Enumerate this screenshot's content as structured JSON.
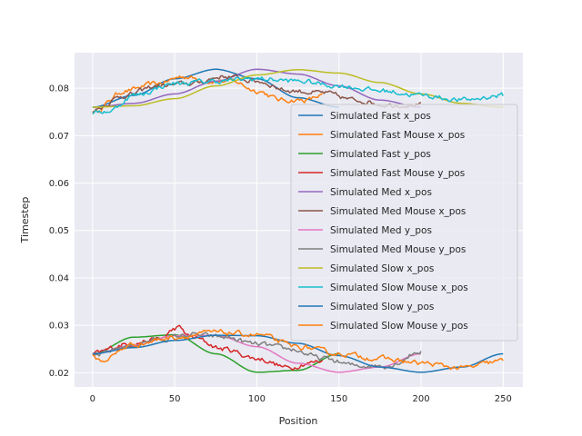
{
  "chart_data": {
    "type": "line",
    "title": "",
    "xlabel": "Position",
    "ylabel": "Timestep",
    "xlim": [
      -11,
      262
    ],
    "ylim": [
      0.017,
      0.0875
    ],
    "xticks": [
      0,
      50,
      100,
      150,
      200,
      250
    ],
    "yticks": [
      0.02,
      0.03,
      0.04,
      0.05,
      0.06,
      0.07,
      0.08
    ],
    "ytick_labels": [
      "0.02",
      "0.03",
      "0.04",
      "0.05",
      "0.06",
      "0.07",
      "0.08"
    ],
    "grid": true,
    "legend_position": "right",
    "series": [
      {
        "name": "Simulated Fast x_pos",
        "color": "#1f77b4",
        "kind": "smooth",
        "x_end": 150,
        "x": [
          0,
          25,
          50,
          75,
          100,
          125,
          150
        ],
        "y": [
          0.076,
          0.0785,
          0.082,
          0.084,
          0.082,
          0.078,
          0.076
        ]
      },
      {
        "name": "Simulated Fast Mouse x_pos",
        "color": "#ff7f0e",
        "kind": "noisy",
        "x_end": 140,
        "x": [
          0,
          20,
          40,
          55,
          70,
          85,
          100,
          115,
          130,
          140
        ],
        "y": [
          0.075,
          0.0795,
          0.081,
          0.0825,
          0.0815,
          0.0815,
          0.0795,
          0.0775,
          0.0775,
          0.0785
        ]
      },
      {
        "name": "Simulated Fast y_pos",
        "color": "#2ca02c",
        "kind": "smooth",
        "x_end": 150,
        "x": [
          0,
          25,
          50,
          75,
          100,
          125,
          150
        ],
        "y": [
          0.024,
          0.0275,
          0.028,
          0.024,
          0.0201,
          0.0205,
          0.024
        ]
      },
      {
        "name": "Simulated Fast Mouse y_pos",
        "color": "#d62728",
        "kind": "noisy",
        "x_end": 140,
        "x": [
          0,
          20,
          40,
          52,
          60,
          80,
          100,
          120,
          130,
          140
        ],
        "y": [
          0.024,
          0.026,
          0.027,
          0.0295,
          0.0275,
          0.025,
          0.023,
          0.021,
          0.022,
          0.0225
        ]
      },
      {
        "name": "Simulated Med x_pos",
        "color": "#9467bd",
        "kind": "smooth",
        "x_end": 200,
        "x": [
          0,
          25,
          50,
          75,
          100,
          125,
          150,
          175,
          200
        ],
        "y": [
          0.076,
          0.0768,
          0.0788,
          0.0815,
          0.084,
          0.083,
          0.0805,
          0.0775,
          0.076
        ]
      },
      {
        "name": "Simulated Med Mouse x_pos",
        "color": "#8c564b",
        "kind": "noisy",
        "x_end": 200,
        "x": [
          0,
          20,
          40,
          60,
          80,
          100,
          120,
          140,
          160,
          180,
          200
        ],
        "y": [
          0.0755,
          0.0785,
          0.0805,
          0.081,
          0.0825,
          0.0815,
          0.0795,
          0.079,
          0.0775,
          0.0765,
          0.0765
        ]
      },
      {
        "name": "Simulated Med y_pos",
        "color": "#e377c2",
        "kind": "smooth",
        "x_end": 200,
        "x": [
          0,
          25,
          50,
          75,
          100,
          125,
          150,
          175,
          200
        ],
        "y": [
          0.024,
          0.0258,
          0.0278,
          0.0279,
          0.0255,
          0.022,
          0.0201,
          0.0212,
          0.024
        ]
      },
      {
        "name": "Simulated Med Mouse y_pos",
        "color": "#7f7f7f",
        "kind": "noisy",
        "x_end": 200,
        "x": [
          0,
          20,
          40,
          60,
          80,
          100,
          120,
          140,
          160,
          180,
          200
        ],
        "y": [
          0.0235,
          0.0255,
          0.027,
          0.028,
          0.0275,
          0.026,
          0.025,
          0.023,
          0.0215,
          0.0215,
          0.0245
        ]
      },
      {
        "name": "Simulated Slow x_pos",
        "color": "#bcbd22",
        "kind": "smooth",
        "x_end": 250,
        "x": [
          0,
          25,
          50,
          75,
          100,
          125,
          150,
          175,
          200,
          225,
          250
        ],
        "y": [
          0.076,
          0.0763,
          0.0778,
          0.0805,
          0.0828,
          0.0839,
          0.0832,
          0.0812,
          0.0788,
          0.0768,
          0.076
        ]
      },
      {
        "name": "Simulated Slow Mouse x_pos",
        "color": "#17becf",
        "kind": "noisy",
        "x_end": 250,
        "x": [
          0,
          10,
          25,
          50,
          75,
          100,
          125,
          150,
          175,
          200,
          225,
          250
        ],
        "y": [
          0.0748,
          0.0752,
          0.0785,
          0.081,
          0.0815,
          0.082,
          0.0815,
          0.0805,
          0.0795,
          0.0785,
          0.0775,
          0.0785
        ]
      },
      {
        "name": "Simulated Slow y_pos",
        "color": "#1f77b4",
        "kind": "smooth",
        "x_end": 250,
        "x": [
          0,
          25,
          50,
          75,
          100,
          125,
          150,
          175,
          200,
          225,
          250
        ],
        "y": [
          0.024,
          0.0253,
          0.0268,
          0.0279,
          0.0278,
          0.0262,
          0.0236,
          0.0212,
          0.0201,
          0.0212,
          0.024
        ]
      },
      {
        "name": "Simulated Slow Mouse y_pos",
        "color": "#ff7f0e",
        "kind": "noisy",
        "x_end": 250,
        "x": [
          0,
          5,
          25,
          50,
          75,
          100,
          125,
          150,
          175,
          200,
          225,
          250
        ],
        "y": [
          0.0235,
          0.0225,
          0.026,
          0.0275,
          0.0285,
          0.028,
          0.0255,
          0.024,
          0.023,
          0.022,
          0.021,
          0.0225
        ]
      }
    ]
  }
}
